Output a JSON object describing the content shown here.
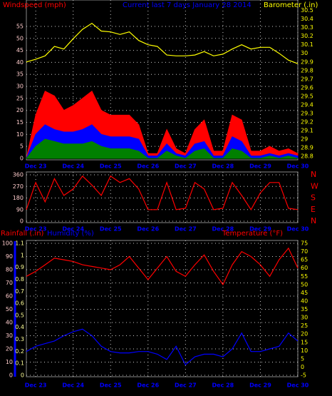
{
  "chart_data": [
    {
      "type": "line",
      "title": "Current last 7 days January 28 2014",
      "ylabel": "Windspeed (mph)",
      "y2label": "Barometer (.in)",
      "categories": [
        null,
        "Dec 23",
        null,
        null,
        null,
        "Dec 24",
        null,
        null,
        null,
        "Dec 25",
        null,
        null,
        null,
        "Dec 26",
        null,
        null,
        null,
        "Dec 27",
        null,
        null,
        null,
        "Dec 28",
        null,
        null,
        null,
        "Dec 29",
        null,
        null,
        null,
        "Dec 30"
      ],
      "ylim": [
        0,
        64.5
      ],
      "yticks": [
        0,
        5,
        10,
        15,
        20,
        25,
        30,
        35,
        40,
        45,
        50,
        55
      ],
      "y2lim": [
        28.775,
        30.58
      ],
      "y2ticks": [
        28.8,
        28.9,
        29,
        29.1,
        29.2,
        29.3,
        29.4,
        29.5,
        29.6,
        29.7,
        29.8,
        29.9,
        30,
        30.1,
        30.2,
        30.3,
        30.4,
        30.5
      ],
      "grid": true,
      "series": [
        {
          "color": "#ff0000",
          "style": "area",
          "values": [
            0,
            18,
            28,
            26,
            20,
            22,
            25,
            28,
            20,
            18,
            18,
            18,
            14,
            2,
            2,
            12,
            4,
            2,
            12,
            16,
            3,
            3,
            18,
            16,
            3,
            3,
            5,
            3,
            4,
            2
          ]
        },
        {
          "color": "#0000ff",
          "style": "area",
          "values": [
            0,
            10,
            14,
            12,
            11,
            11,
            12,
            14,
            10,
            9,
            9,
            9,
            8,
            1,
            1,
            6,
            2,
            1,
            6,
            7,
            1,
            1,
            9,
            7,
            1,
            1,
            2,
            1,
            2,
            1
          ]
        },
        {
          "color": "#008000",
          "style": "area",
          "values": [
            0,
            5,
            8,
            7,
            6,
            6,
            6,
            7,
            5,
            4,
            4,
            4,
            3,
            0,
            0,
            3,
            1,
            0,
            3,
            4,
            0,
            0,
            4,
            3,
            0,
            0,
            1,
            0,
            1,
            0
          ]
        },
        {
          "color": "#ffff00",
          "style": "line",
          "axis": "y2",
          "values": [
            29.9,
            29.93,
            29.97,
            30.08,
            30.05,
            30.17,
            30.28,
            30.35,
            30.26,
            30.25,
            30.22,
            30.25,
            30.15,
            30.1,
            30.08,
            29.98,
            29.97,
            29.97,
            29.98,
            30.02,
            29.97,
            29.99,
            30.05,
            30.1,
            30.05,
            30.07,
            30.07,
            30.0,
            29.92,
            29.88
          ]
        }
      ]
    },
    {
      "type": "line",
      "categories": [
        null,
        "Dec 23",
        null,
        null,
        null,
        "Dec 24",
        null,
        null,
        null,
        "Dec 25",
        null,
        null,
        null,
        "Dec 26",
        null,
        null,
        null,
        "Dec 27",
        null,
        null,
        null,
        "Dec 28",
        null,
        null,
        null,
        "Dec 29",
        null,
        null,
        null,
        "Dec 30"
      ],
      "ylim": [
        0,
        360
      ],
      "yticks": [
        0,
        90,
        180,
        270,
        360
      ],
      "y2lim": [
        0,
        360
      ],
      "y2ticks": [
        {
          "value": 0,
          "label": "N"
        },
        {
          "value": 90,
          "label": "E"
        },
        {
          "value": 180,
          "label": "S"
        },
        {
          "value": 270,
          "label": "W"
        },
        {
          "value": 360,
          "label": "N"
        }
      ],
      "grid": true,
      "series": [
        {
          "color": "#ff0000",
          "style": "line",
          "values": [
            90,
            300,
            150,
            330,
            200,
            250,
            350,
            280,
            200,
            350,
            300,
            330,
            250,
            90,
            90,
            300,
            90,
            100,
            300,
            250,
            90,
            100,
            300,
            200,
            90,
            220,
            300,
            300,
            100,
            90
          ]
        }
      ]
    },
    {
      "type": "line",
      "ylabel": "Humidity (%)",
      "y2label": "Temperature (°F)",
      "y3label": "Rainfall (.in)",
      "categories": [
        null,
        "Dec 23",
        null,
        null,
        null,
        "Dec 24",
        null,
        null,
        null,
        "Dec 25",
        null,
        null,
        null,
        "Dec 26",
        null,
        null,
        null,
        "Dec 27",
        null,
        null,
        null,
        "Dec 28",
        null,
        null,
        null,
        "Dec 29",
        null,
        null,
        null,
        "Dec 30"
      ],
      "ylim": [
        0,
        100
      ],
      "yticks": [
        0,
        10,
        20,
        30,
        40,
        50,
        60,
        70,
        80,
        90,
        100
      ],
      "y3lim": [
        0,
        1.1
      ],
      "y3ticks": [
        0,
        0.1,
        0.2,
        0.3,
        0.4,
        0.5,
        0.6,
        0.7,
        0.8,
        0.9,
        1,
        1.1
      ],
      "y2lim": [
        -5,
        75
      ],
      "y2ticks": [
        -5,
        0,
        5,
        10,
        15,
        20,
        25,
        30,
        35,
        40,
        45,
        50,
        55,
        60,
        65,
        70,
        75
      ],
      "grid": true,
      "series": [
        {
          "color": "#ff0000",
          "style": "line",
          "axis": "y2",
          "values": [
            55,
            58,
            62,
            66,
            65,
            64,
            62,
            61,
            60,
            59,
            62,
            67,
            60,
            53,
            60,
            67,
            58,
            55,
            62,
            68,
            58,
            50,
            62,
            70,
            67,
            62,
            55,
            65,
            72,
            60
          ]
        },
        {
          "color": "#0000ff",
          "style": "line",
          "values": [
            18,
            22,
            24,
            26,
            30,
            33,
            35,
            30,
            22,
            18,
            17,
            17,
            18,
            18,
            16,
            12,
            22,
            8,
            14,
            16,
            16,
            14,
            20,
            32,
            18,
            18,
            20,
            22,
            32,
            26
          ]
        }
      ]
    }
  ]
}
